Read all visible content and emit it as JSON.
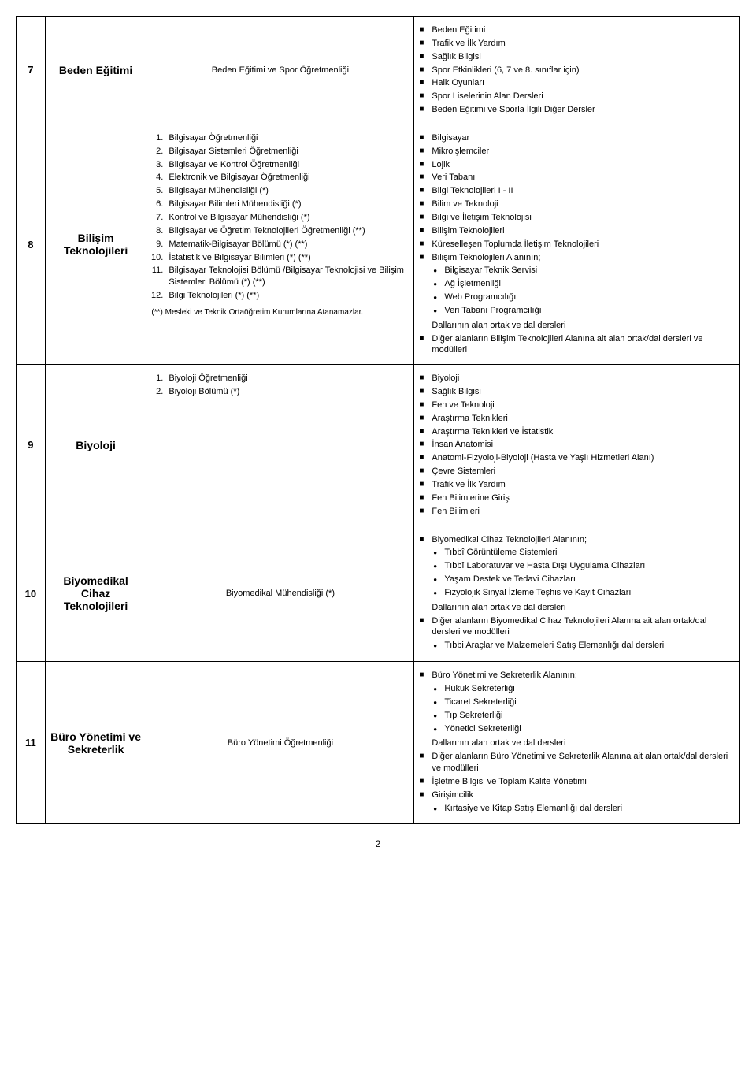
{
  "page_number": "2",
  "rows": [
    {
      "num": "7",
      "name": "Beden Eğitimi",
      "middle_plain": "Beden Eğitimi ve Spor Öğretmenliği",
      "right_sq": [
        "Beden Eğitimi",
        "Trafik ve İlk Yardım",
        "Sağlık Bilgisi",
        "Spor Etkinlikleri (6, 7 ve 8. sınıflar için)",
        "Halk Oyunları",
        "Spor Liselerinin Alan Dersleri",
        "Beden Eğitimi ve Sporla İlgili Diğer Dersler"
      ]
    },
    {
      "num": "8",
      "name": "Bilişim Teknolojileri",
      "middle_numbered": [
        "Bilgisayar  Öğretmenliği",
        "Bilgisayar Sistemleri Öğretmenliği",
        "Bilgisayar ve Kontrol Öğretmenliği",
        "Elektronik ve Bilgisayar Öğretmenliği",
        "Bilgisayar Mühendisliği (*)",
        "Bilgisayar Bilimleri Mühendisliği (*)",
        "Kontrol ve Bilgisayar Mühendisliği (*)",
        "Bilgisayar ve Öğretim Teknolojileri Öğretmenliği (**)",
        "Matematik-Bilgisayar Bölümü (*) (**)",
        "İstatistik ve Bilgisayar Bilimleri (*) (**)",
        "Bilgisayar Teknolojisi Bölümü /Bilgisayar Teknolojisi ve Bilişim Sistemleri Bölümü (*) (**)",
        "Bilgi Teknolojileri (*) (**)"
      ],
      "middle_note": "(**)   Mesleki ve Teknik Ortaöğretim  Kurumlarına Atanamazlar.",
      "right_groups": [
        {
          "sq": "Bilgisayar"
        },
        {
          "sq": "Mikroişlemciler"
        },
        {
          "sq": "Lojik"
        },
        {
          "sq": "Veri Tabanı"
        },
        {
          "sq": "Bilgi Teknolojileri I - II"
        },
        {
          "sq": "Bilim ve Teknoloji"
        },
        {
          "sq": "Bilgi ve İletişim Teknolojisi"
        },
        {
          "sq": "Bilişim Teknolojileri"
        },
        {
          "sq": "Küreselleşen Toplumda İletişim Teknolojileri"
        },
        {
          "sq": "Bilişim Teknolojileri Alanının;",
          "bul": [
            "Bilgisayar Teknik Servisi",
            "Ağ İşletmenliği",
            "Web Programcılığı",
            "Veri Tabanı Programcılığı"
          ],
          "trailing": "Dallarının alan ortak ve dal dersleri"
        },
        {
          "sq": "Diğer alanların Bilişim Teknolojileri Alanına ait alan ortak/dal dersleri ve modülleri"
        }
      ]
    },
    {
      "num": "9",
      "name": "Biyoloji",
      "middle_numbered": [
        "Biyoloji Öğretmenliği",
        "Biyoloji Bölümü (*)"
      ],
      "right_sq": [
        "Biyoloji",
        "Sağlık Bilgisi",
        "Fen ve Teknoloji",
        "Araştırma Teknikleri",
        "Araştırma Teknikleri ve İstatistik",
        "İnsan Anatomisi",
        "Anatomi-Fizyoloji-Biyoloji (Hasta ve Yaşlı Hizmetleri Alanı)",
        "Çevre Sistemleri",
        "Trafik ve İlk Yardım",
        "Fen Bilimlerine Giriş",
        "Fen Bilimleri"
      ]
    },
    {
      "num": "10",
      "name": "Biyomedikal Cihaz Teknolojileri",
      "middle_plain": "Biyomedikal Mühendisliği (*)",
      "right_groups": [
        {
          "sq": "Biyomedikal Cihaz Teknolojileri Alanının;",
          "bul": [
            "Tıbbî Görüntüleme Sistemleri",
            "Tıbbî Laboratuvar ve Hasta Dışı Uygulama Cihazları",
            "Yaşam Destek ve Tedavi Cihazları",
            "Fizyolojik Sinyal İzleme Teşhis ve   Kayıt Cihazları"
          ],
          "trailing": "Dallarının alan ortak ve dal dersleri"
        },
        {
          "sq": "Diğer alanların Biyomedikal Cihaz Teknolojileri Alanına ait alan ortak/dal dersleri ve modülleri",
          "bul": [
            "Tıbbi  Araçlar ve Malzemeleri Satış Elemanlığı dal dersleri"
          ]
        }
      ]
    },
    {
      "num": "11",
      "name": "Büro Yönetimi ve Sekreterlik",
      "middle_plain": "Büro Yönetimi Öğretmenliği",
      "right_groups": [
        {
          "sq": "Büro Yönetimi ve Sekreterlik Alanının;",
          "bul": [
            "Hukuk Sekreterliği",
            "Ticaret Sekreterliği",
            "Tıp Sekreterliği",
            "Yönetici Sekreterliği"
          ],
          "trailing": "Dallarının alan ortak ve dal dersleri"
        },
        {
          "sq": "Diğer alanların Büro Yönetimi ve Sekreterlik Alanına ait alan ortak/dal dersleri ve modülleri"
        },
        {
          "sq": "İşletme Bilgisi ve Toplam Kalite Yönetimi"
        },
        {
          "sq": "Girişimcilik",
          "bul": [
            "Kırtasiye ve Kitap Satış Elemanlığı dal dersleri"
          ]
        }
      ]
    }
  ]
}
